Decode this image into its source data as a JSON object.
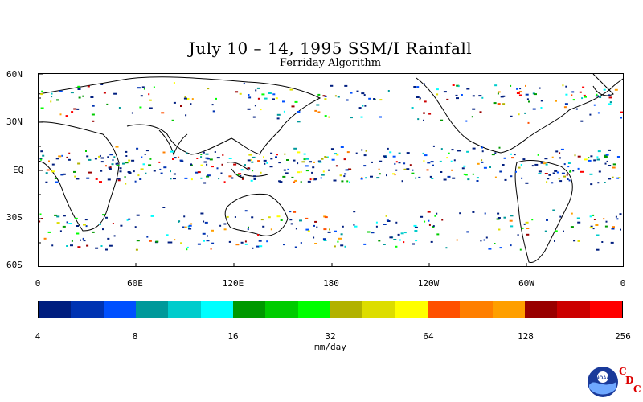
{
  "title": "July 10 – 14, 1995 SSM/I Rainfall",
  "subtitle": "Ferriday Algorithm",
  "lat_labels": [
    "60N",
    "30N",
    "EQ",
    "30S",
    "60S"
  ],
  "lon_labels": [
    "0",
    "60E",
    "120E",
    "180",
    "120W",
    "60W",
    "0"
  ],
  "colorbar": {
    "colors": [
      "#001e7f",
      "#0033b2",
      "#0050ff",
      "#00999a",
      "#00cccc",
      "#00ffff",
      "#009900",
      "#00cc00",
      "#00ff00",
      "#b2b200",
      "#dddd00",
      "#ffff00",
      "#ff5000",
      "#ff7f00",
      "#ff9f00",
      "#990000",
      "#cc0000",
      "#ff0000"
    ],
    "tick_labels": [
      "4",
      "8",
      "16",
      "32",
      "64",
      "128",
      "256"
    ],
    "units": "mm/day"
  },
  "logo": {
    "text": "NOAA",
    "cdc": [
      "C",
      "D",
      "C"
    ]
  }
}
